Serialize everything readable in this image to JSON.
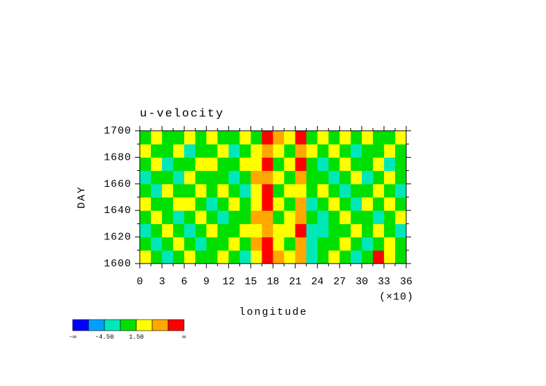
{
  "chart_data": {
    "type": "heatmap",
    "title": "u-velocity",
    "ylabel": "DAY",
    "xlabel": "longitude",
    "x_scale_note": "(×10)",
    "xlim": [
      0,
      360
    ],
    "ylim": [
      1600,
      1700
    ],
    "xticks": [
      {
        "value": 0,
        "label": "0"
      },
      {
        "value": 30,
        "label": "3"
      },
      {
        "value": 60,
        "label": "6"
      },
      {
        "value": 90,
        "label": "9"
      },
      {
        "value": 120,
        "label": "12"
      },
      {
        "value": 150,
        "label": "15"
      },
      {
        "value": 180,
        "label": "18"
      },
      {
        "value": 210,
        "label": "21"
      },
      {
        "value": 240,
        "label": "24"
      },
      {
        "value": 270,
        "label": "27"
      },
      {
        "value": 300,
        "label": "30"
      },
      {
        "value": 330,
        "label": "33"
      },
      {
        "value": 360,
        "label": "36"
      }
    ],
    "xminorticks": [
      15,
      45,
      75,
      105,
      135,
      165,
      195,
      225,
      255,
      285,
      315,
      345
    ],
    "yticks": [
      1600,
      1620,
      1640,
      1660,
      1680,
      1700
    ],
    "yminorticks": [
      1610,
      1630,
      1650,
      1670,
      1690
    ],
    "levels": [
      -7.5,
      -4.5,
      -1.5,
      1.5,
      4.5,
      7.5
    ],
    "colors": [
      "#0000ff",
      "#00a0ff",
      "#00e8b8",
      "#00e000",
      "#ffff00",
      "#ffa800",
      "#ff0000"
    ],
    "colorbar_ticks": [
      {
        "value": -4.5,
        "label": "-4.50"
      },
      {
        "value": 1.5,
        "label": "1.50"
      }
    ],
    "colorbar_ends": [
      "-∞",
      "∞"
    ],
    "z": [
      [
        3,
        0,
        -3,
        0,
        3,
        0,
        0,
        3,
        0,
        -3,
        3,
        9,
        6,
        3,
        6,
        -3,
        0,
        3,
        0,
        -3,
        0,
        9,
        3,
        0
      ],
      [
        0,
        -3,
        0,
        3,
        0,
        -3,
        0,
        0,
        3,
        0,
        6,
        9,
        3,
        0,
        6,
        -3,
        0,
        0,
        3,
        0,
        -3,
        0,
        3,
        0
      ],
      [
        -3,
        0,
        3,
        0,
        -3,
        0,
        3,
        0,
        0,
        3,
        3,
        6,
        3,
        3,
        9,
        -3,
        -3,
        0,
        0,
        3,
        0,
        3,
        0,
        -3
      ],
      [
        0,
        3,
        0,
        -3,
        0,
        3,
        0,
        -3,
        0,
        0,
        6,
        6,
        0,
        3,
        6,
        0,
        -3,
        0,
        3,
        0,
        0,
        -3,
        0,
        3
      ],
      [
        3,
        0,
        0,
        3,
        3,
        0,
        -3,
        0,
        3,
        0,
        3,
        9,
        3,
        0,
        6,
        -3,
        0,
        3,
        0,
        -3,
        3,
        0,
        3,
        0
      ],
      [
        0,
        -3,
        3,
        0,
        0,
        3,
        0,
        3,
        0,
        -3,
        3,
        9,
        0,
        3,
        3,
        0,
        3,
        0,
        -3,
        0,
        0,
        3,
        0,
        -3
      ],
      [
        -3,
        0,
        0,
        -3,
        3,
        0,
        0,
        0,
        -3,
        0,
        6,
        6,
        3,
        0,
        6,
        0,
        0,
        -3,
        0,
        3,
        -3,
        0,
        3,
        0
      ],
      [
        0,
        3,
        -3,
        0,
        0,
        3,
        3,
        0,
        0,
        3,
        3,
        9,
        0,
        3,
        9,
        0,
        -3,
        0,
        3,
        0,
        0,
        3,
        -3,
        0
      ],
      [
        3,
        0,
        0,
        3,
        -3,
        0,
        0,
        3,
        -3,
        0,
        3,
        6,
        3,
        0,
        6,
        3,
        0,
        3,
        0,
        -3,
        0,
        0,
        3,
        0
      ],
      [
        0,
        3,
        0,
        0,
        3,
        0,
        3,
        0,
        0,
        3,
        0,
        9,
        6,
        3,
        9,
        0,
        3,
        0,
        3,
        0,
        3,
        0,
        0,
        3
      ]
    ]
  }
}
